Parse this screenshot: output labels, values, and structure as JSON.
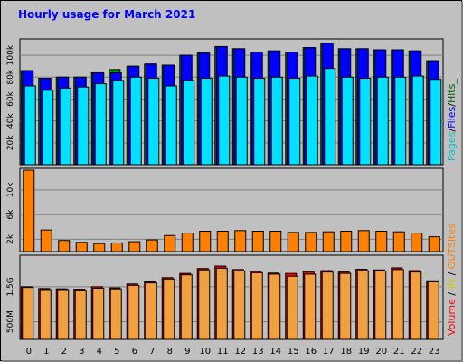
{
  "chart_data": {
    "type": "bar",
    "title": "Hourly usage for March 2021",
    "categories": [
      "0",
      "1",
      "2",
      "3",
      "4",
      "5",
      "6",
      "7",
      "8",
      "9",
      "10",
      "11",
      "12",
      "13",
      "14",
      "15",
      "16",
      "17",
      "18",
      "19",
      "20",
      "21",
      "22",
      "23"
    ],
    "panels": [
      {
        "id": "hits",
        "ylim": [
          0,
          115000
        ],
        "yticks": [
          {
            "value": 20000,
            "label": "20k"
          },
          {
            "value": 40000,
            "label": "40k"
          },
          {
            "value": 60000,
            "label": "60k"
          },
          {
            "value": 80000,
            "label": "80k"
          },
          {
            "value": 100000,
            "label": "100k"
          }
        ],
        "side_label": [
          {
            "text": "Pages",
            "color": "#00c8c8"
          },
          {
            "text": "/",
            "color": "#000000"
          },
          {
            "text": "Files",
            "color": "#0000ff"
          },
          {
            "text": "/",
            "color": "#000000"
          },
          {
            "text": "Hits_",
            "color": "#006400"
          }
        ],
        "series": [
          {
            "name": "Hits",
            "color": "#00a000",
            "values": [
              86000,
              79000,
              80000,
              80000,
              84000,
              87000,
              90000,
              92000,
              91000,
              100000,
              102000,
              108000,
              106000,
              103000,
              104000,
              103000,
              107000,
              111000,
              106000,
              106000,
              105000,
              105000,
              104000,
              95000
            ]
          },
          {
            "name": "Files",
            "color": "#0000ff",
            "values": [
              86000,
              79000,
              80000,
              80000,
              84000,
              84000,
              90000,
              92000,
              91000,
              100000,
              102000,
              108000,
              106000,
              103000,
              104000,
              103000,
              107000,
              111000,
              106000,
              106000,
              105000,
              105000,
              104000,
              95000
            ]
          },
          {
            "name": "Pages",
            "color": "#00e0ff",
            "values": [
              72000,
              68000,
              70000,
              71000,
              74000,
              77000,
              80000,
              79000,
              72000,
              77000,
              79000,
              81000,
              80000,
              79000,
              80000,
              79000,
              81000,
              88000,
              80000,
              79000,
              80000,
              80000,
              81000,
              78000
            ]
          }
        ]
      },
      {
        "id": "sites",
        "ylim": [
          0,
          13500
        ],
        "yticks": [
          {
            "value": 2000,
            "label": "2k"
          },
          {
            "value": 6000,
            "label": "6k"
          },
          {
            "value": 10000,
            "label": "10k"
          }
        ],
        "side_label": [
          {
            "text": "Sites",
            "color": "#ff8000"
          }
        ],
        "series": [
          {
            "name": "Sites",
            "color": "#ff8000",
            "values": [
              13200,
              3500,
              1800,
              1500,
              1300,
              1400,
              1600,
              1900,
              2600,
              3000,
              3300,
              3300,
              3400,
              3300,
              3300,
              3100,
              3100,
              3200,
              3300,
              3400,
              3300,
              3200,
              3000,
              2400
            ]
          }
        ]
      },
      {
        "id": "volume",
        "ylim": [
          0,
          2400
        ],
        "yticks": [
          {
            "value": 500,
            "label": "500M"
          },
          {
            "value": 1500,
            "label": "1.5G"
          }
        ],
        "side_label": [
          {
            "text": "Volume",
            "color": "#ff0000"
          },
          {
            "text": " / ",
            "color": "#000000"
          },
          {
            "text": "IN",
            "color": "#cccc00"
          },
          {
            "text": " / ",
            "color": "#000000"
          },
          {
            "text": "OUT",
            "color": "#ff8000"
          }
        ],
        "series": [
          {
            "name": "Volume",
            "color": "#ff0000",
            "values": [
              1500,
              1450,
              1440,
              1430,
              1500,
              1470,
              1580,
              1640,
              1760,
              1880,
              2020,
              2090,
              1990,
              1940,
              1890,
              1880,
              1920,
              1960,
              1920,
              2000,
              1980,
              2040,
              1960,
              1670
            ]
          },
          {
            "name": "OUT",
            "color": "#f0a040",
            "values": [
              1480,
              1420,
              1420,
              1400,
              1460,
              1440,
              1540,
              1610,
              1720,
              1840,
              1980,
              2030,
              1950,
              1900,
              1860,
              1800,
              1860,
              1920,
              1880,
              1960,
              1950,
              1990,
              1920,
              1640
            ]
          }
        ]
      }
    ],
    "grid": true,
    "colors": {
      "background": "#c0c0c0",
      "plot_background": "#c0c0c0",
      "gridline": "#808080",
      "title": "#0000ff"
    }
  }
}
